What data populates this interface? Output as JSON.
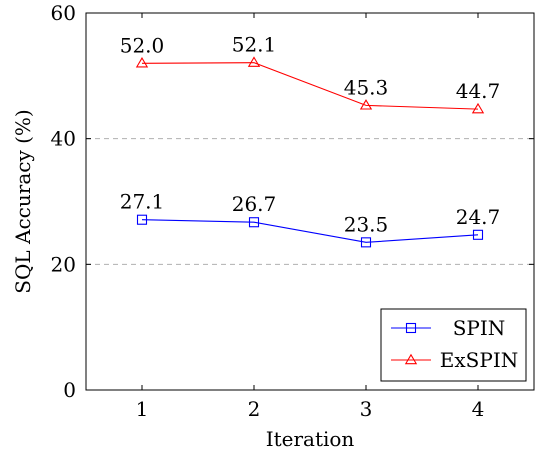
{
  "chart_data": {
    "type": "line",
    "title": "",
    "xlabel": "Iteration",
    "ylabel": "SQL Accuracy (%)",
    "x": [
      1,
      2,
      3,
      4
    ],
    "xticks": [
      "1",
      "2",
      "3",
      "4"
    ],
    "yticks": [
      "0",
      "20",
      "40",
      "60"
    ],
    "xlim": [
      0.5,
      4.5
    ],
    "ylim": [
      0,
      60
    ],
    "grid": "horizontal dashed at y=20 and y=40",
    "legend_position": "bottom-right",
    "series": [
      {
        "name": "SPIN",
        "values": [
          27.1,
          26.7,
          23.5,
          24.7
        ],
        "labels": [
          "27.1",
          "26.7",
          "23.5",
          "24.7"
        ],
        "color": "#0000ff",
        "marker": "square"
      },
      {
        "name": "ExSPIN",
        "values": [
          52.0,
          52.1,
          45.3,
          44.7
        ],
        "labels": [
          "52.0",
          "52.1",
          "45.3",
          "44.7"
        ],
        "color": "#ff0000",
        "marker": "triangle"
      }
    ]
  }
}
